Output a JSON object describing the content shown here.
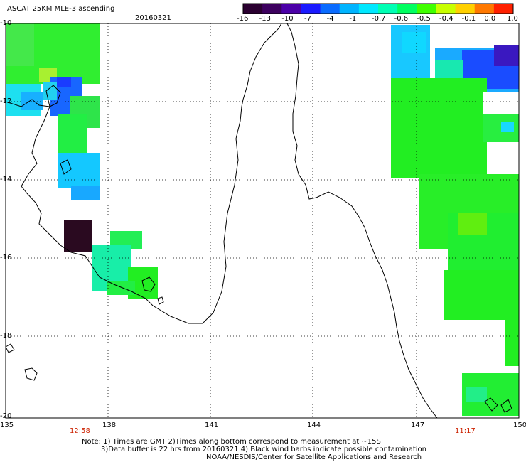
{
  "header": {
    "title": "ASCAT 25KM MLE-3 ascending",
    "date": "20160321"
  },
  "colorbar": {
    "ticks": [
      "-16",
      "-13",
      "-10",
      "-7",
      "-4",
      "-1",
      "-0.7",
      "-0.6",
      "-0.5",
      "-0.4",
      "-0.1",
      "0.0",
      "1.0"
    ],
    "colors": [
      "#2a0030",
      "#3c005e",
      "#4b00a8",
      "#1a1aff",
      "#0a6bff",
      "#00b4ff",
      "#00e8ff",
      "#00ffb4",
      "#00ff60",
      "#40ff00",
      "#c8ff00",
      "#ffd000",
      "#ff7800",
      "#ff2000"
    ]
  },
  "axes": {
    "lat_labels": [
      "-10",
      "-12",
      "-14",
      "-16",
      "-18",
      "-20"
    ],
    "lon_labels": [
      "135",
      "138",
      "141",
      "144",
      "147",
      "150"
    ]
  },
  "pass_times": [
    "12:58",
    "11:17"
  ],
  "notes": [
    "Note: 1) Times are GMT 2)Times along bottom correspond to measurement at ~15S",
    "3)Data buffer is 22 hrs from 20160321 4) Black wind barbs indicate possible contamination",
    "NOAA/NESDIS/Center for Satellite Applications and Research"
  ],
  "palette": {
    "green": "#22ee22",
    "aqua": "#18e890",
    "cyan": "#10d8ff",
    "sky": "#18a8ff",
    "blue": "#1444ff",
    "navy": "#2a10c0",
    "black": "#2a0a20",
    "time_red": "#cc2200"
  }
}
